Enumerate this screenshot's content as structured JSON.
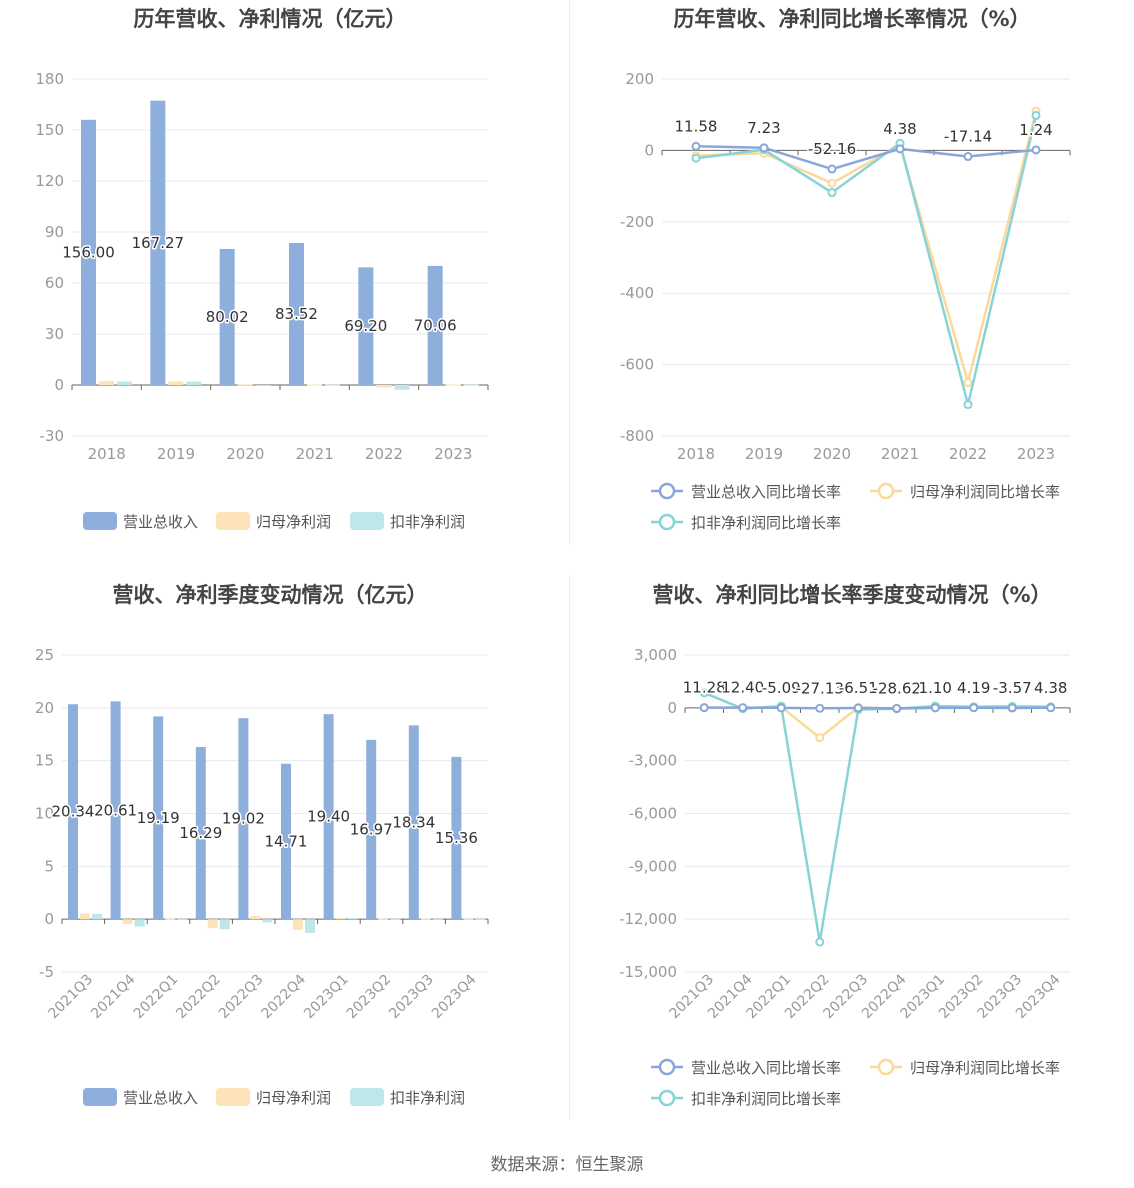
{
  "colors": {
    "revenue": "#8eafdc",
    "net_profit": "#fde4b8",
    "deducted_profit": "#bde7ea",
    "revenue_line": "#8aa6d9",
    "net_profit_line": "#fbd999",
    "deducted_profit_line": "#88d3d8",
    "grid": "#e6e9f0",
    "axis_text": "#999999",
    "title": "#444444",
    "label": "#333333"
  },
  "source": "数据来源：恒生聚源",
  "chart_data": [
    {
      "id": "annual_amounts",
      "type": "bar",
      "title": "历年营收、净利情况（亿元）",
      "categories": [
        "2018",
        "2019",
        "2020",
        "2021",
        "2022",
        "2023"
      ],
      "ylim": [
        -30,
        180
      ],
      "yticks": [
        -30,
        0,
        30,
        60,
        90,
        120,
        150,
        180
      ],
      "ytick_labels": [
        "-30",
        "0",
        "30",
        "60",
        "90",
        "120",
        "150",
        "180"
      ],
      "series": [
        {
          "name": "营业总收入",
          "values": [
            156.0,
            167.27,
            80.02,
            83.52,
            69.2,
            70.06
          ],
          "labels": [
            "156.00",
            "167.27",
            "80.02",
            "83.52",
            "69.20",
            "70.06"
          ]
        },
        {
          "name": "归母净利润",
          "values": [
            2.3,
            2.1,
            0.4,
            0.3,
            -1.5,
            0.3
          ]
        },
        {
          "name": "扣非净利润",
          "values": [
            2.0,
            2.0,
            -0.2,
            0.2,
            -2.8,
            0.2
          ]
        }
      ],
      "legend": "bottom",
      "grid": true
    },
    {
      "id": "annual_growth",
      "type": "line",
      "title": "历年营收、净利同比增长率情况（%）",
      "categories": [
        "2018",
        "2019",
        "2020",
        "2021",
        "2022",
        "2023"
      ],
      "ylim": [
        -800,
        200
      ],
      "yticks": [
        -800,
        -600,
        -400,
        -200,
        0,
        200
      ],
      "ytick_labels": [
        "-800",
        "-600",
        "-400",
        "-200",
        "0",
        "200"
      ],
      "series": [
        {
          "name": "营业总收入同比增长率",
          "values": [
            11.58,
            7.23,
            -52.16,
            4.38,
            -17.14,
            1.24
          ],
          "labels": [
            "11.58",
            "7.23",
            "-52.16",
            "4.38",
            "-17.14",
            "1.24"
          ]
        },
        {
          "name": "归母净利润同比增长率",
          "values": [
            -15,
            -8,
            -92,
            15,
            -650,
            110
          ]
        },
        {
          "name": "扣非净利润同比增长率",
          "values": [
            -22,
            2,
            -118,
            20,
            -712,
            98
          ]
        }
      ],
      "legend": "bottom",
      "grid": true
    },
    {
      "id": "quarterly_amounts",
      "type": "bar",
      "title": "营收、净利季度变动情况（亿元）",
      "categories": [
        "2021Q3",
        "2021Q4",
        "2022Q1",
        "2022Q2",
        "2022Q3",
        "2022Q4",
        "2023Q1",
        "2023Q2",
        "2023Q3",
        "2023Q4"
      ],
      "ylim": [
        -5,
        25
      ],
      "yticks": [
        -5,
        0,
        5,
        10,
        15,
        20,
        25
      ],
      "ytick_labels": [
        "-5",
        "0",
        "5",
        "10",
        "15",
        "20",
        "25"
      ],
      "series": [
        {
          "name": "营业总收入",
          "values": [
            20.34,
            20.61,
            19.19,
            16.29,
            19.02,
            14.71,
            19.4,
            16.97,
            18.34,
            15.36
          ],
          "labels": [
            "20.34",
            "20.61",
            "19.19",
            "16.29",
            "19.02",
            "14.71",
            "19.40",
            "16.97",
            "18.34",
            "15.36"
          ]
        },
        {
          "name": "归母净利润",
          "values": [
            0.55,
            -0.45,
            0.05,
            -0.85,
            0.3,
            -1.0,
            0.12,
            0.05,
            0.05,
            0.05
          ]
        },
        {
          "name": "扣非净利润",
          "values": [
            0.5,
            -0.7,
            0.03,
            -0.95,
            -0.3,
            -1.3,
            0.1,
            0.04,
            0.03,
            0.04
          ]
        }
      ],
      "legend": "bottom",
      "grid": true
    },
    {
      "id": "quarterly_growth",
      "type": "line",
      "title": "营收、净利同比增长率季度变动情况（%）",
      "categories": [
        "2021Q3",
        "2021Q4",
        "2022Q1",
        "2022Q2",
        "2022Q3",
        "2022Q4",
        "2023Q1",
        "2023Q2",
        "2023Q3",
        "2023Q4"
      ],
      "ylim": [
        -15000,
        3000
      ],
      "yticks": [
        -15000,
        -12000,
        -9000,
        -6000,
        -3000,
        0,
        3000
      ],
      "ytick_labels": [
        "-15,000",
        "-12,000",
        "-9,000",
        "-6,000",
        "-3,000",
        "0",
        "3,000"
      ],
      "series": [
        {
          "name": "营业总收入同比增长率",
          "values": [
            11.28,
            12.4,
            -5.09,
            -27.13,
            -6.51,
            -28.62,
            1.1,
            4.19,
            -3.57,
            4.38
          ],
          "labels": [
            "11.28",
            "12.40",
            "-5.09",
            "-27.13",
            "-6.51",
            "-28.62",
            "1.10",
            "4.19",
            "-3.57",
            "4.38"
          ]
        },
        {
          "name": "归母净利润同比增长率",
          "values": [
            20,
            -10,
            50,
            -1700,
            30,
            -60,
            10,
            20,
            -20,
            10
          ]
        },
        {
          "name": "扣非净利润同比增长率",
          "values": [
            850,
            -50,
            100,
            -13300,
            -100,
            -50,
            100,
            60,
            80,
            60
          ]
        }
      ],
      "legend": "bottom",
      "grid": true
    }
  ]
}
